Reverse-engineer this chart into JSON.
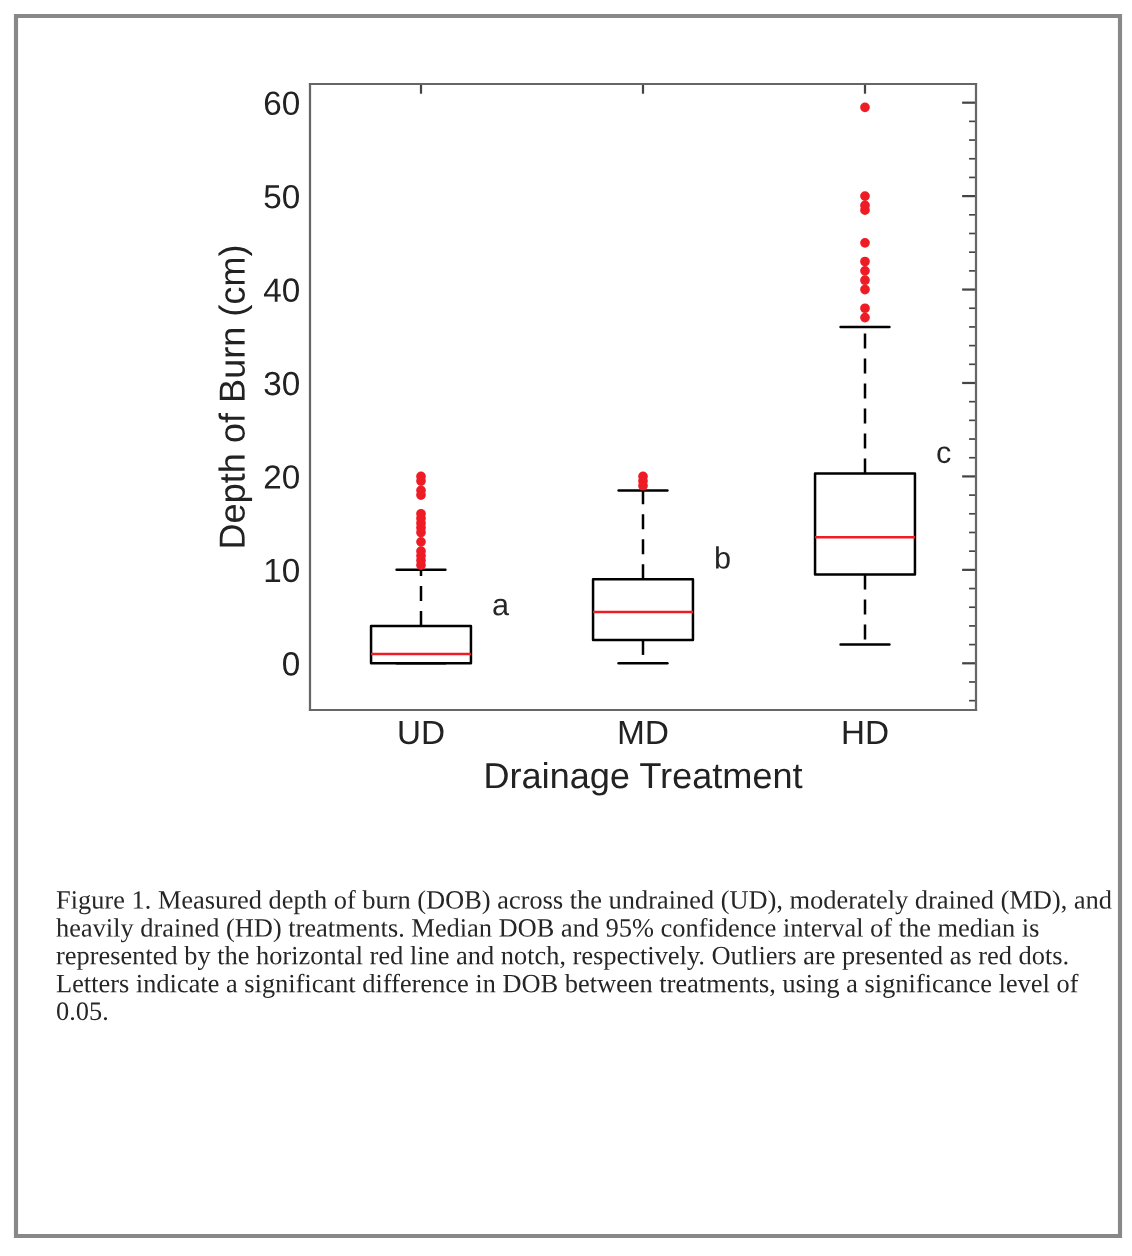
{
  "chart_data": {
    "type": "box",
    "xlabel": "Drainage Treatment",
    "ylabel": "Depth of Burn (cm)",
    "categories": [
      "UD",
      "MD",
      "HD"
    ],
    "boxes": [
      {
        "low": 0,
        "q1": 0,
        "median": 1,
        "q3": 4,
        "high": 10,
        "outliers": [
          10.5,
          11,
          11.5,
          12,
          13,
          14,
          14.5,
          15,
          15.5,
          16,
          18,
          18.5,
          19.5,
          20
        ]
      },
      {
        "low": 0,
        "q1": 2.5,
        "median": 5.5,
        "q3": 9,
        "high": 18.5,
        "outliers": [
          19,
          19.5,
          20
        ]
      },
      {
        "low": 2,
        "q1": 9.5,
        "median": 13.5,
        "q3": 20.3,
        "high": 36,
        "outliers": [
          37,
          38,
          40,
          41,
          42,
          43,
          45,
          48.5,
          49,
          50,
          59.5
        ]
      }
    ],
    "color": "#000000",
    "line_style": "dashed",
    "ylim": [
      -5,
      62
    ],
    "yticks": [
      0,
      10,
      20,
      30,
      40,
      50,
      60
    ],
    "grid": false,
    "annotations": [
      "a",
      "b",
      "c",
      "Figure 1. Measured depth of burn (DOB) across the undrained (UD), moderately drained (MD), and heavily drained (HD) treatments. Median DOB and 95% confidence interval of the median is represented by the horizontal red line and notch, respectively. Outliers are presented as red dots. Letters indicate a significant difference in DOB between treatments, using a significance level of 0.05."
    ]
  }
}
